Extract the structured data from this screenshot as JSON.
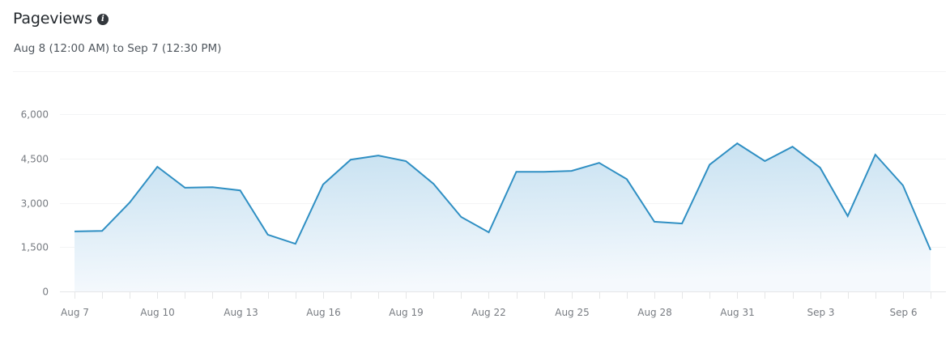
{
  "header": {
    "title": "Pageviews",
    "info_icon": "info-icon",
    "date_range": "Aug 8 (12:00 AM) to Sep 7 (12:30 PM)"
  },
  "colors": {
    "line": "#2f8fc3",
    "fill_top": "#c3dff0",
    "fill_bottom": "#f5f9fd",
    "grid": "#f3f4f5",
    "axis": "#e5e6e7",
    "label": "#787c82"
  },
  "chart_data": {
    "type": "area",
    "title": "Pageviews",
    "subtitle": "Aug 8 (12:00 AM) to Sep 7 (12:30 PM)",
    "xlabel": "",
    "ylabel": "",
    "ylim": [
      0,
      6000
    ],
    "yticks": [
      0,
      1500,
      3000,
      4500,
      6000
    ],
    "ytick_labels": [
      "0",
      "1,500",
      "3,000",
      "4,500",
      "6,000"
    ],
    "xtick_labels": [
      "Aug 7",
      "Aug 10",
      "Aug 13",
      "Aug 16",
      "Aug 19",
      "Aug 22",
      "Aug 25",
      "Aug 28",
      "Aug 31",
      "Sep 3",
      "Sep 6"
    ],
    "grid": true,
    "legend": "none",
    "x": [
      "Aug 7",
      "Aug 8",
      "Aug 9",
      "Aug 10",
      "Aug 11",
      "Aug 12",
      "Aug 13",
      "Aug 14",
      "Aug 15",
      "Aug 16",
      "Aug 17",
      "Aug 18",
      "Aug 19",
      "Aug 20",
      "Aug 21",
      "Aug 22",
      "Aug 23",
      "Aug 24",
      "Aug 25",
      "Aug 26",
      "Aug 27",
      "Aug 28",
      "Aug 29",
      "Aug 30",
      "Aug 31",
      "Sep 1",
      "Sep 2",
      "Sep 3",
      "Sep 4",
      "Sep 5",
      "Sep 6",
      "Sep 7"
    ],
    "series": [
      {
        "name": "Pageviews",
        "values": [
          2030,
          2050,
          3010,
          4220,
          3510,
          3530,
          3420,
          1920,
          1610,
          3620,
          4460,
          4600,
          4410,
          3640,
          2520,
          2000,
          4050,
          4050,
          4080,
          4350,
          3800,
          2360,
          2300,
          4290,
          5010,
          4410,
          4900,
          4190,
          2550,
          4630,
          3590,
          1400
        ]
      }
    ]
  }
}
